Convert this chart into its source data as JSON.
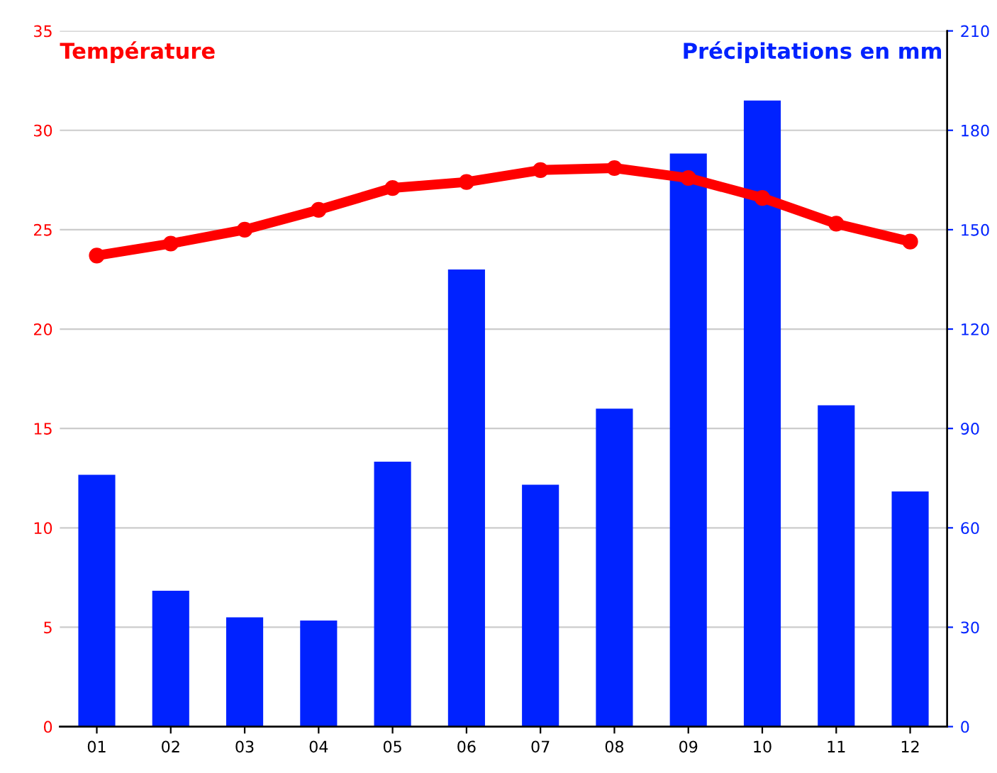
{
  "chart_data": {
    "type": "bar",
    "ylabel": "Température",
    "y2label": "Précipitations en mm",
    "categories": [
      "01",
      "02",
      "03",
      "04",
      "05",
      "06",
      "07",
      "08",
      "09",
      "10",
      "11",
      "12"
    ],
    "series": [
      {
        "axis": "y2",
        "color": "#0022ff",
        "values": [
          76,
          41,
          33,
          32,
          80,
          138,
          73,
          96,
          173,
          189,
          97,
          71
        ]
      },
      {
        "type": "line",
        "axis": "y",
        "color": "#ff0000",
        "marker": "circle",
        "values": [
          23.7,
          24.3,
          25.0,
          26.0,
          27.1,
          27.4,
          28.0,
          28.1,
          27.6,
          26.6,
          25.3,
          24.4
        ]
      }
    ],
    "ylim": [
      0,
      35
    ],
    "yticks": [
      0,
      5,
      10,
      15,
      20,
      25,
      30,
      35
    ],
    "y2lim": [
      0,
      210
    ],
    "y2ticks": [
      0,
      30,
      60,
      90,
      120,
      150,
      180,
      210
    ],
    "grid": "y"
  }
}
